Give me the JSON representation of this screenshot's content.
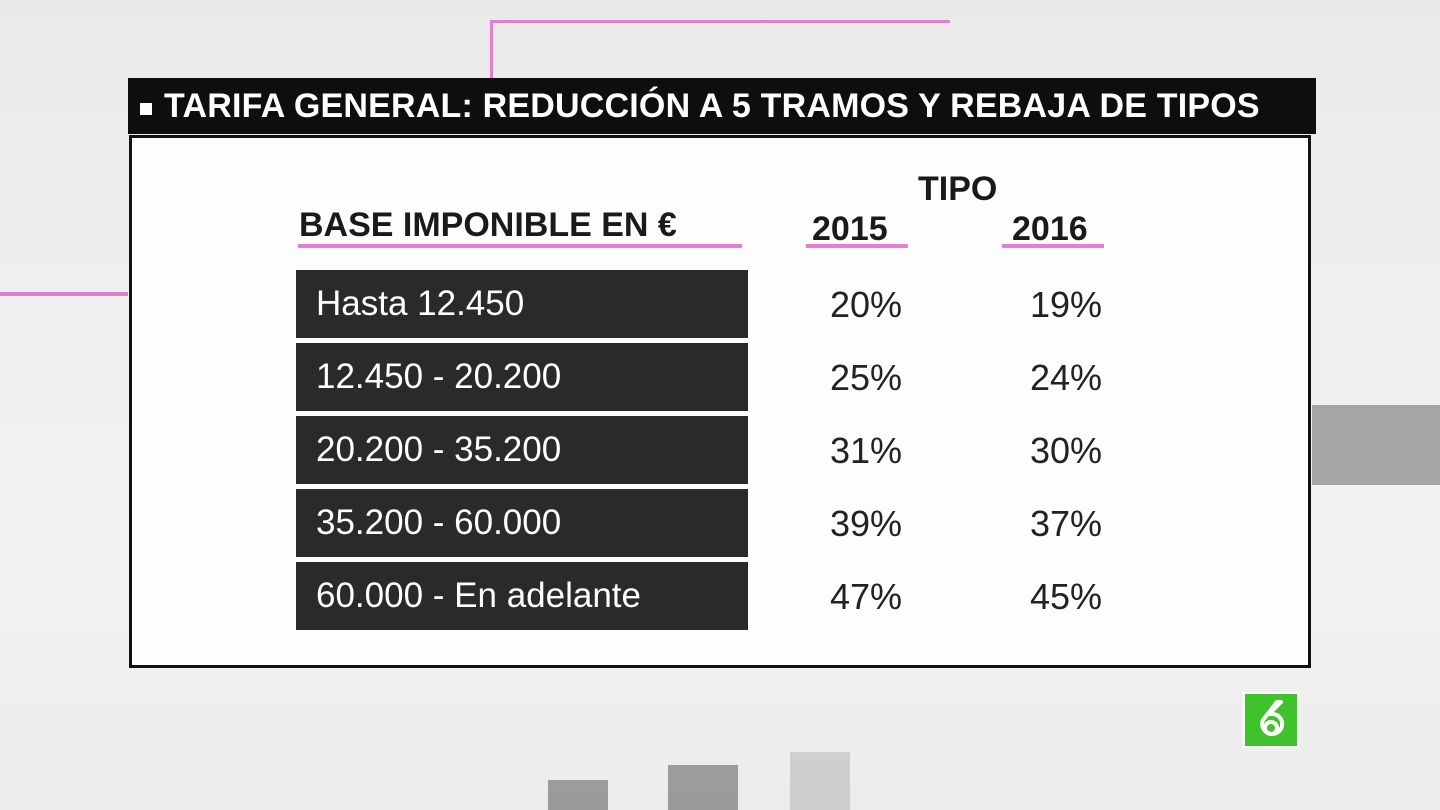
{
  "header": {
    "title": "TARIFA GENERAL: REDUCCIÓN A 5 TRAMOS Y REBAJA DE TIPOS"
  },
  "chart_data": {
    "type": "table",
    "title": "TARIFA GENERAL: REDUCCIÓN A 5 TRAMOS Y REBAJA DE TIPOS",
    "columns": {
      "base": "BASE IMPONIBLE EN €",
      "group": "TIPO",
      "year_2015": "2015",
      "year_2016": "2016"
    },
    "rows": [
      {
        "tramo": "Hasta 12.450",
        "v2015": "20%",
        "v2016": "19%"
      },
      {
        "tramo": "12.450 - 20.200",
        "v2015": "25%",
        "v2016": "24%"
      },
      {
        "tramo": "20.200 - 35.200",
        "v2015": "31%",
        "v2016": "30%"
      },
      {
        "tramo": "35.200 - 60.000",
        "v2015": "39%",
        "v2016": "37%"
      },
      {
        "tramo": "60.000 - En adelante",
        "v2015": "47%",
        "v2016": "45%"
      }
    ]
  },
  "logo": {
    "name": "laSexta logo",
    "color": "#3fc22c"
  },
  "colors": {
    "accent_underline": "#e57fd3",
    "row_bg": "#2a2a28",
    "title_bg": "#0e0e0e"
  }
}
